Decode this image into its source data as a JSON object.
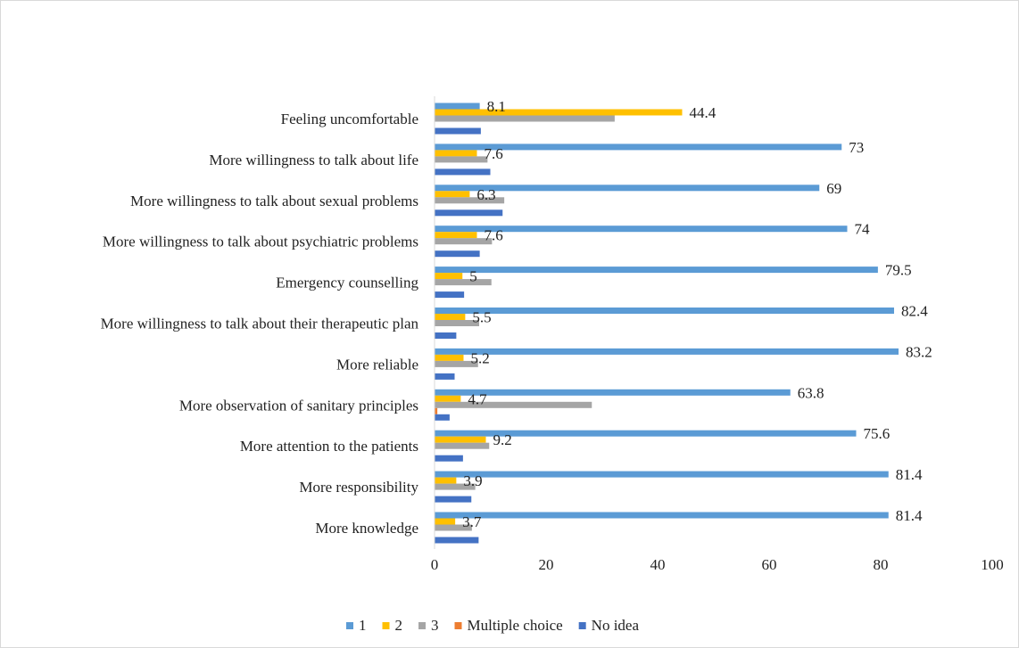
{
  "chart_data": {
    "type": "bar",
    "orientation": "horizontal",
    "title": "",
    "xlabel": "",
    "ylabel": "",
    "xlim": [
      0,
      100
    ],
    "x_ticks": [
      "0",
      "20",
      "40",
      "60",
      "80",
      "100"
    ],
    "grid": false,
    "legend_position": "bottom",
    "categories": [
      "Feeling uncomfortable",
      "More willingness to talk about life",
      "More willingness to talk about sexual problems",
      "More willingness to talk about psychiatric problems",
      "Emergency counselling",
      "More willingness to talk about their therapeutic plan",
      "More reliable",
      "More observation of sanitary principles",
      "More attention to the patients",
      "More responsibility",
      "More knowledge"
    ],
    "series": [
      {
        "name": "1",
        "color": "#5B9BD5",
        "values": [
          8.1,
          73,
          69,
          74,
          79.5,
          82.4,
          83.2,
          63.8,
          75.6,
          81.4,
          81.4
        ],
        "labels": [
          "8.1",
          "73",
          "69",
          "74",
          "79.5",
          "82.4",
          "83.2",
          "63.8",
          "75.6",
          "81.4",
          "81.4"
        ]
      },
      {
        "name": "2",
        "color": "#FFC000",
        "values": [
          44.4,
          7.6,
          6.3,
          7.6,
          5,
          5.5,
          5.2,
          4.7,
          9.2,
          3.9,
          3.7
        ],
        "labels": [
          "44.4",
          "7.6",
          "6.3",
          "7.6",
          "5",
          "5.5",
          "5.2",
          "4.7",
          "9.2",
          "3.9",
          "3.7"
        ]
      },
      {
        "name": "3",
        "color": "#A5A5A5",
        "values": [
          32.3,
          9.5,
          12.5,
          10.3,
          10.2,
          8,
          7.8,
          28.2,
          9.8,
          7.3,
          6.7
        ]
      },
      {
        "name": "Multiple choice",
        "color": "#ED7D31",
        "values": [
          0,
          0,
          0,
          0,
          0,
          0,
          0,
          0.5,
          0,
          0,
          0
        ]
      },
      {
        "name": "No idea",
        "color": "#4472C4",
        "values": [
          8.3,
          10,
          12.2,
          8.1,
          5.3,
          3.9,
          3.6,
          2.7,
          5.1,
          6.6,
          7.9
        ]
      }
    ]
  }
}
